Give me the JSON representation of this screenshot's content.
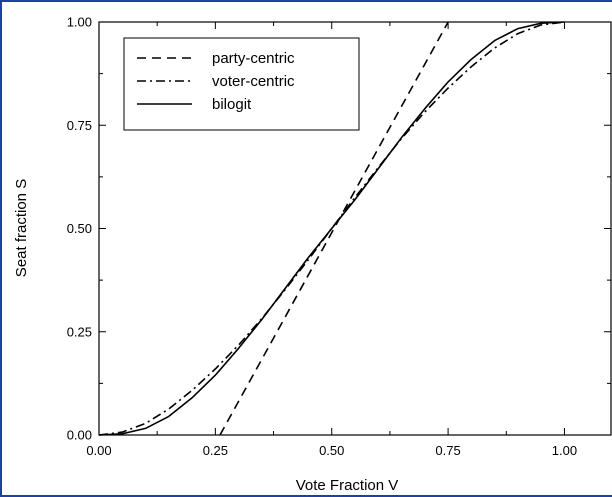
{
  "chart_data": {
    "type": "line",
    "title": "",
    "xlabel": "Vote Fraction V",
    "ylabel": "Seat fraction S",
    "xlim": [
      0,
      1.1
    ],
    "ylim": [
      0,
      1
    ],
    "x_ticks": [
      "0.00",
      "0.25",
      "0.50",
      "0.75",
      "1.00"
    ],
    "y_ticks": [
      "0.00",
      "0.25",
      "0.50",
      "0.75",
      "1.00"
    ],
    "grid": false,
    "legend_position": "top-left",
    "series": [
      {
        "name": "party-centric",
        "style": "dashed",
        "color": "#000000",
        "x": [
          0.26,
          0.75
        ],
        "y": [
          0.0,
          1.0
        ]
      },
      {
        "name": "voter-centric",
        "style": "dash-dot",
        "color": "#000000",
        "x": [
          0.0,
          0.05,
          0.1,
          0.15,
          0.2,
          0.25,
          0.3,
          0.35,
          0.4,
          0.45,
          0.5,
          0.55,
          0.6,
          0.65,
          0.7,
          0.75,
          0.8,
          0.85,
          0.9,
          0.95,
          1.0
        ],
        "y": [
          0.0,
          0.007,
          0.028,
          0.063,
          0.108,
          0.16,
          0.218,
          0.282,
          0.352,
          0.425,
          0.5,
          0.575,
          0.648,
          0.718,
          0.782,
          0.84,
          0.892,
          0.937,
          0.972,
          0.993,
          1.0
        ]
      },
      {
        "name": "bilogit",
        "style": "solid",
        "color": "#000000",
        "x": [
          0.0,
          0.05,
          0.1,
          0.15,
          0.2,
          0.25,
          0.3,
          0.35,
          0.4,
          0.45,
          0.5,
          0.55,
          0.6,
          0.65,
          0.7,
          0.75,
          0.8,
          0.85,
          0.9,
          0.95,
          1.0
        ],
        "y": [
          0.0,
          0.003,
          0.016,
          0.045,
          0.09,
          0.145,
          0.21,
          0.28,
          0.355,
          0.43,
          0.5,
          0.57,
          0.645,
          0.72,
          0.79,
          0.855,
          0.91,
          0.955,
          0.984,
          0.997,
          1.0
        ]
      }
    ]
  }
}
